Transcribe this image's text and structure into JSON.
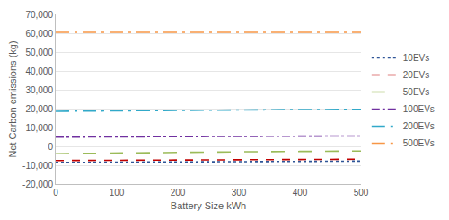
{
  "chart_data": {
    "type": "line",
    "x_label": "Battery Size kWh",
    "y_label": "Net Carbon emissions (kg)",
    "x": [
      0,
      100,
      200,
      300,
      400,
      500
    ],
    "series": [
      {
        "name": "10EVs",
        "color": "#2f5597",
        "line_style": "dot",
        "values": [
          -8500,
          -8300,
          -8200,
          -8000,
          -7900,
          -7800
        ]
      },
      {
        "name": "20EVs",
        "color": "#c00000",
        "line_style": "dash",
        "values": [
          -7500,
          -7300,
          -7200,
          -7000,
          -6900,
          -6800
        ]
      },
      {
        "name": "50EVs",
        "color": "#9bbb59",
        "line_style": "longdash",
        "values": [
          -3900,
          -3500,
          -3200,
          -2900,
          -2700,
          -2500
        ]
      },
      {
        "name": "100EVs",
        "color": "#7030a0",
        "line_style": "dashdot",
        "values": [
          4900,
          5100,
          5200,
          5300,
          5400,
          5500
        ]
      },
      {
        "name": "200EVs",
        "color": "#31a9c9",
        "line_style": "longdashdot",
        "values": [
          18600,
          18900,
          19100,
          19300,
          19500,
          19600
        ]
      },
      {
        "name": "500EVs",
        "color": "#f79646",
        "line_style": "longdashdot",
        "values": [
          60500,
          60500,
          60500,
          60500,
          60500,
          60500
        ]
      }
    ],
    "xlim": [
      0,
      500
    ],
    "xticks": [
      0,
      100,
      200,
      300,
      400,
      500
    ],
    "ylim": [
      -20000,
      70000
    ],
    "yticks": [
      {
        "value": -20000,
        "label": "-20,000"
      },
      {
        "value": -10000,
        "label": "-10,000"
      },
      0,
      {
        "value": 10000,
        "label": "10,000"
      },
      {
        "value": 20000,
        "label": "20,000"
      },
      {
        "value": 30000,
        "label": "30,000"
      },
      {
        "value": 40000,
        "label": "40,000"
      },
      {
        "value": 50000,
        "label": "50,000"
      },
      {
        "value": 60000,
        "label": "60,000"
      },
      {
        "value": 70000,
        "label": "70,000"
      }
    ],
    "grid": true,
    "legend": "right"
  }
}
